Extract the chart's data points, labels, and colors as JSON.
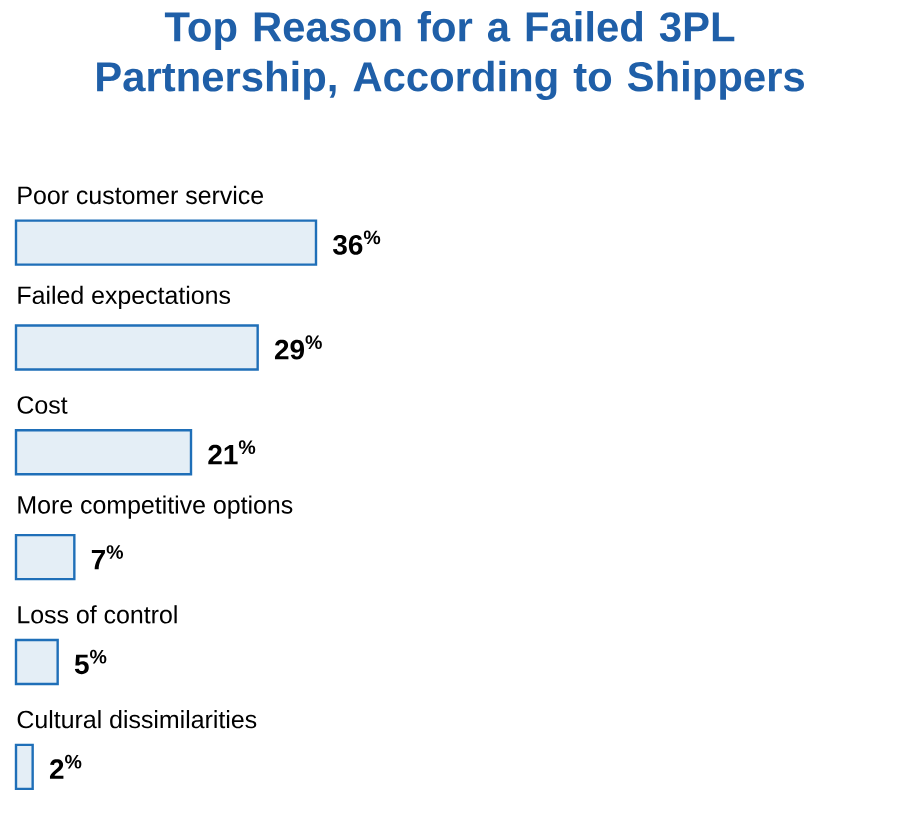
{
  "chart_data": {
    "type": "bar",
    "orientation": "horizontal",
    "title": "Top Reason for a Failed 3PL Partnership, According to Shippers",
    "categories": [
      "Poor customer service",
      "Failed expectations",
      "Cost",
      "More competitive options",
      "Loss of control",
      "Cultural dissimilarities"
    ],
    "values": [
      36,
      29,
      21,
      7,
      5,
      2
    ],
    "color": "#1f6fb8",
    "value_labels": [
      "36$^{%}$",
      "29$^{%}$",
      "21$^{%}$",
      "7$^{%}$",
      "5$^{%}$",
      "2$^{%}$"
    ]
  }
}
